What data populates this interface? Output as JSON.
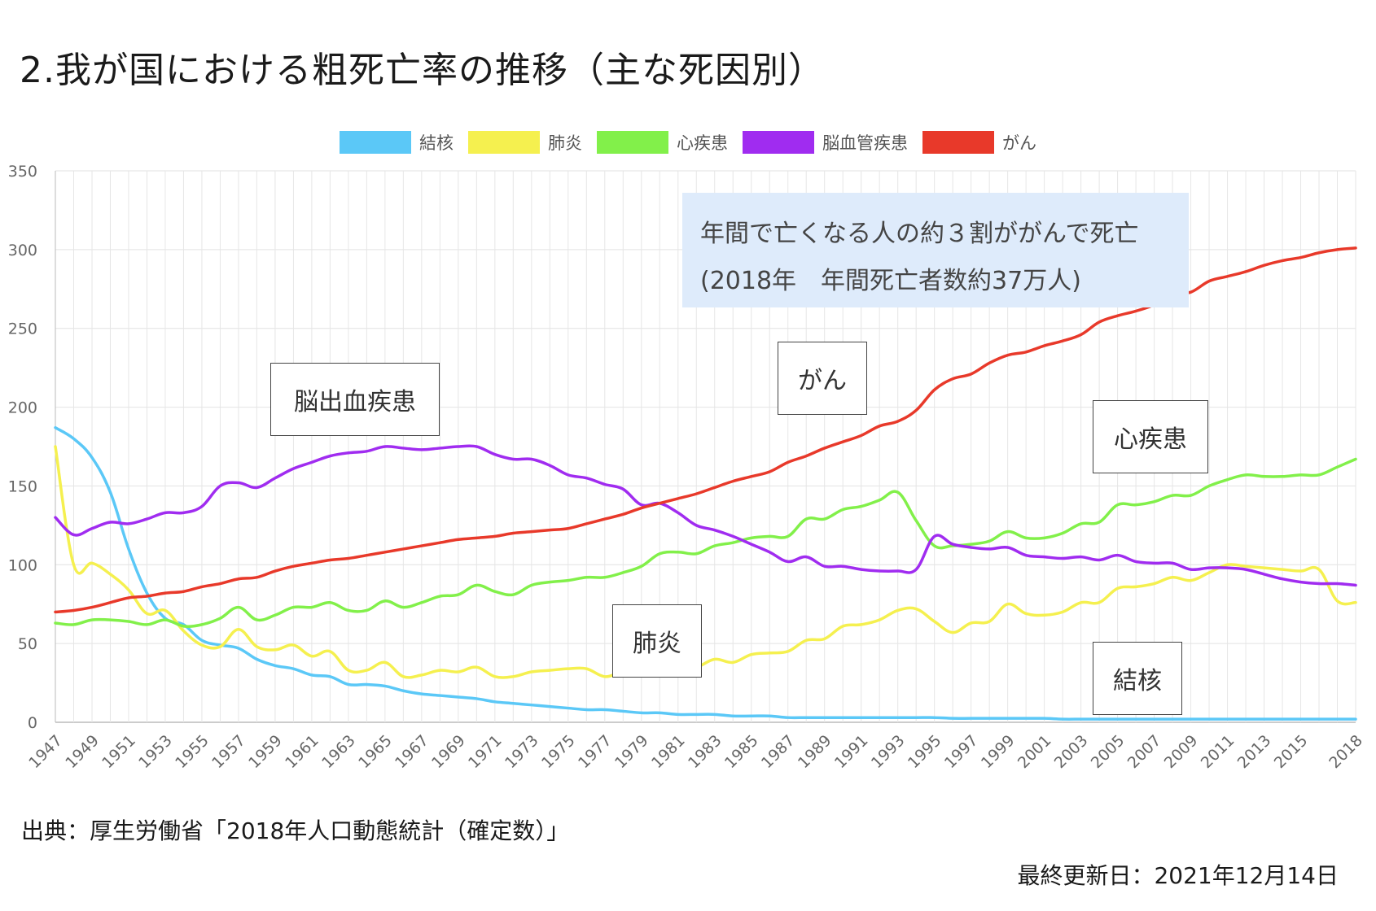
{
  "page": {
    "title": "2.我が国における粗死亡率の推移（主な死因別）",
    "source": "出典：厚生労働省「2018年人口動態統計（確定数）」",
    "updated": "最終更新日：2021年12月14日"
  },
  "annotations": {
    "callout_line1": "年間で亡くなる人の約３割ががんで死亡",
    "callout_line2": "(2018年　年間死亡者数約37万人)",
    "label_stroke": "脳出血疾患",
    "label_cancer": "がん",
    "label_heart": "心疾患",
    "label_pneumonia": "肺炎",
    "label_tb": "結核"
  },
  "chart_data": {
    "type": "line",
    "x": [
      1947,
      1948,
      1949,
      1950,
      1951,
      1952,
      1953,
      1954,
      1955,
      1956,
      1957,
      1958,
      1959,
      1960,
      1961,
      1962,
      1963,
      1964,
      1965,
      1966,
      1967,
      1968,
      1969,
      1970,
      1971,
      1972,
      1973,
      1974,
      1975,
      1976,
      1977,
      1978,
      1979,
      1980,
      1981,
      1982,
      1983,
      1984,
      1985,
      1986,
      1987,
      1988,
      1989,
      1990,
      1991,
      1992,
      1993,
      1994,
      1995,
      1996,
      1997,
      1998,
      1999,
      2000,
      2001,
      2002,
      2003,
      2004,
      2005,
      2006,
      2007,
      2008,
      2009,
      2010,
      2011,
      2012,
      2013,
      2014,
      2015,
      2016,
      2017,
      2018
    ],
    "x_tick_labels": [
      "1947",
      "1949",
      "1951",
      "1953",
      "1955",
      "1957",
      "1959",
      "1961",
      "1963",
      "1965",
      "1967",
      "1969",
      "1971",
      "1973",
      "1975",
      "1977",
      "1979",
      "1981",
      "1983",
      "1985",
      "1987",
      "1989",
      "1991",
      "1993",
      "1995",
      "1997",
      "1999",
      "2001",
      "2003",
      "2005",
      "2007",
      "2009",
      "2011",
      "2013",
      "2015",
      "2018"
    ],
    "ylim": [
      0,
      350
    ],
    "y_ticks": [
      0,
      50,
      100,
      150,
      200,
      250,
      300,
      350
    ],
    "grid": true,
    "legend_position": "top",
    "series": [
      {
        "name": "結核",
        "color": "#5bc8f7",
        "values": [
          187,
          180,
          168,
          146,
          110,
          82,
          66,
          62,
          52,
          49,
          47,
          40,
          36,
          34,
          30,
          29,
          24,
          24,
          23,
          20,
          18,
          17,
          16,
          15,
          13,
          12,
          11,
          10,
          9,
          8,
          8,
          7,
          6,
          6,
          5,
          5,
          5,
          4,
          4,
          4,
          3,
          3,
          3,
          3,
          3,
          3,
          3,
          3,
          3,
          2.5,
          2.5,
          2.5,
          2.5,
          2.5,
          2.5,
          2,
          2,
          2,
          2,
          2,
          2,
          2,
          2,
          2,
          2,
          2,
          2,
          2,
          2,
          2,
          2,
          2
        ]
      },
      {
        "name": "肺炎",
        "color": "#f5f04f",
        "values": [
          175,
          100,
          101,
          94,
          84,
          69,
          71,
          58,
          49,
          48,
          59,
          48,
          46,
          49,
          42,
          45,
          33,
          33,
          38,
          29,
          30,
          33,
          32,
          35,
          29,
          29,
          32,
          33,
          34,
          34,
          29,
          32,
          31,
          34,
          35,
          35,
          40,
          38,
          43,
          44,
          45,
          52,
          53,
          61,
          62,
          65,
          71,
          72,
          64,
          57,
          63,
          64,
          75,
          69,
          68,
          70,
          76,
          76,
          85,
          86,
          88,
          92,
          90,
          95,
          100,
          99,
          98,
          97,
          96,
          97,
          77,
          76
        ]
      },
      {
        "name": "心疾患",
        "color": "#82f04a",
        "values": [
          63,
          62,
          65,
          65,
          64,
          62,
          65,
          61,
          62,
          66,
          73,
          65,
          68,
          73,
          73,
          76,
          71,
          71,
          77,
          73,
          76,
          80,
          81,
          87,
          83,
          81,
          87,
          89,
          90,
          92,
          92,
          95,
          99,
          107,
          108,
          107,
          112,
          114,
          117,
          118,
          118,
          129,
          129,
          135,
          137,
          141,
          146,
          128,
          112,
          112,
          113,
          115,
          121,
          117,
          117,
          120,
          126,
          127,
          138,
          138,
          140,
          144,
          144,
          150,
          154,
          157,
          156,
          156,
          157,
          157,
          162,
          167
        ]
      },
      {
        "name": "脳血管疾患",
        "color": "#a02cf0",
        "values": [
          130,
          119,
          123,
          127,
          126,
          129,
          133,
          133,
          137,
          150,
          152,
          149,
          155,
          161,
          165,
          169,
          171,
          172,
          175,
          174,
          173,
          174,
          175,
          175,
          170,
          167,
          167,
          163,
          157,
          155,
          151,
          148,
          138,
          139,
          133,
          125,
          122,
          118,
          113,
          108,
          102,
          105,
          99,
          99,
          97,
          96,
          96,
          97,
          118,
          113,
          111,
          110,
          111,
          106,
          105,
          104,
          105,
          103,
          106,
          102,
          101,
          101,
          97,
          98,
          98,
          97,
          94,
          91,
          89,
          88,
          88,
          87
        ]
      },
      {
        "name": "がん",
        "color": "#e8392a",
        "values": [
          70,
          71,
          73,
          76,
          79,
          80,
          82,
          83,
          86,
          88,
          91,
          92,
          96,
          99,
          101,
          103,
          104,
          106,
          108,
          110,
          112,
          114,
          116,
          117,
          118,
          120,
          121,
          122,
          123,
          126,
          129,
          132,
          136,
          139,
          142,
          145,
          149,
          153,
          156,
          159,
          165,
          169,
          174,
          178,
          182,
          188,
          191,
          198,
          211,
          218,
          221,
          228,
          233,
          235,
          239,
          242,
          246,
          254,
          258,
          261,
          265,
          272,
          273,
          280,
          283,
          286,
          290,
          293,
          295,
          298,
          300,
          301
        ]
      }
    ]
  }
}
